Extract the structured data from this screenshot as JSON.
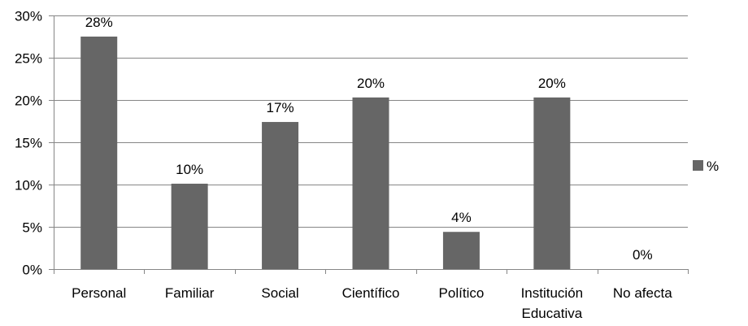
{
  "chart_data": {
    "type": "bar",
    "categories": [
      "Personal",
      "Familiar",
      "Social",
      "Científico",
      "Político",
      "Institución Educativa",
      "No afecta"
    ],
    "category_lines": [
      [
        "Personal"
      ],
      [
        "Familiar"
      ],
      [
        "Social"
      ],
      [
        "Científico"
      ],
      [
        "Político"
      ],
      [
        "Institución",
        "Educativa"
      ],
      [
        "No afecta"
      ]
    ],
    "series": [
      {
        "name": "%",
        "values": [
          27.5,
          10.1,
          17.4,
          20.3,
          4.4,
          20.3,
          0
        ],
        "data_labels": [
          "28%",
          "10%",
          "17%",
          "20%",
          "4%",
          "20%",
          "0%"
        ],
        "color": "#666666"
      }
    ],
    "ylim": [
      0,
      30
    ],
    "yticks": [
      0,
      5,
      10,
      15,
      20,
      25,
      30
    ],
    "ytick_labels": [
      "0%",
      "5%",
      "10%",
      "15%",
      "20%",
      "25%",
      "30%"
    ],
    "title": "",
    "xlabel": "",
    "ylabel": "",
    "grid": true,
    "legend_position": "right",
    "grid_color": "#868686",
    "axis_color": "#868686"
  }
}
